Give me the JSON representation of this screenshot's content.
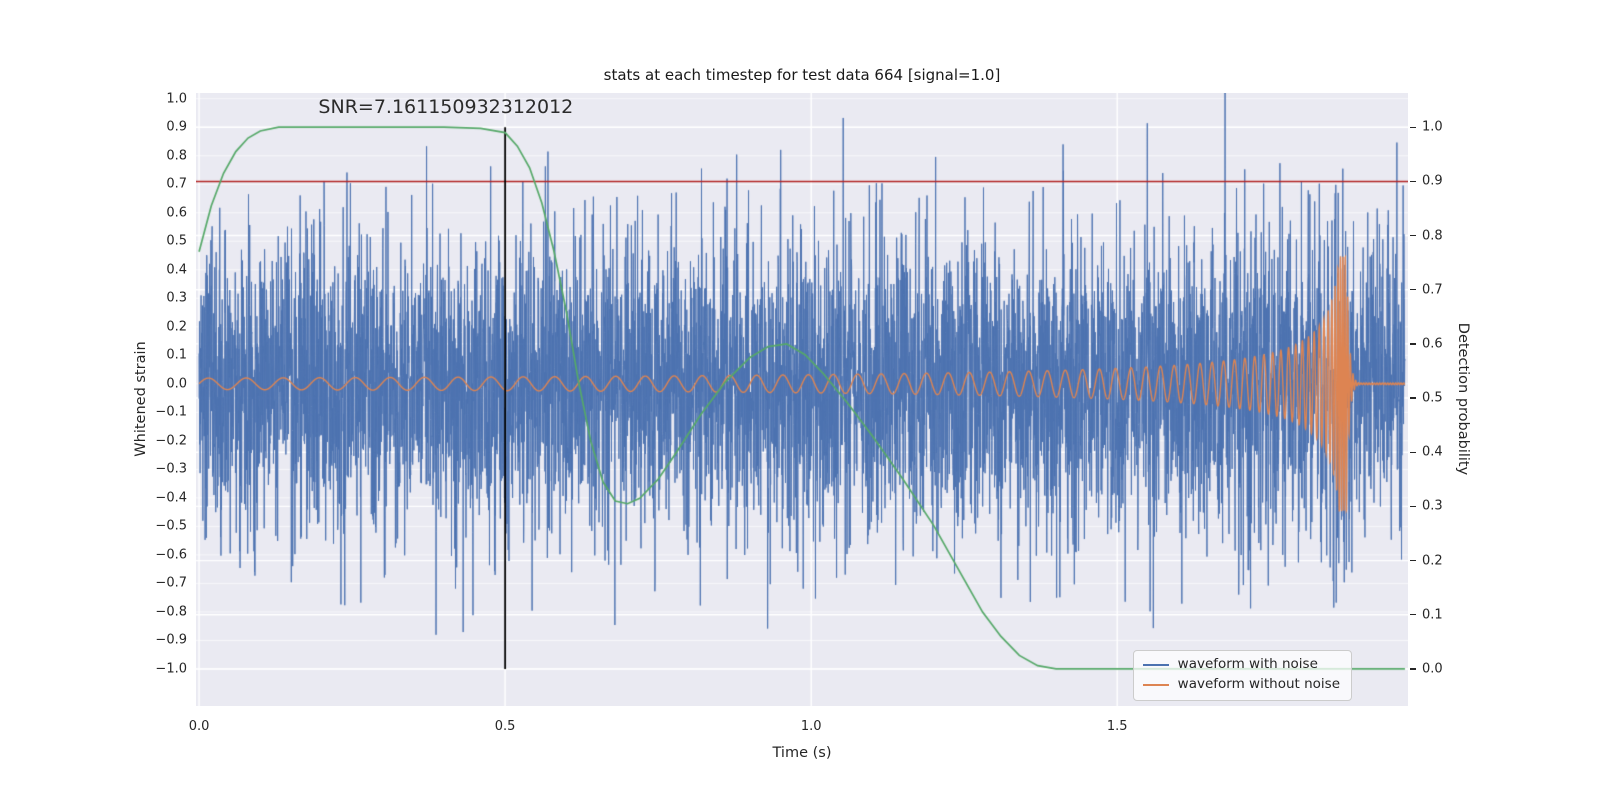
{
  "chart_data": {
    "type": "line",
    "title": "stats at each timestep for test data 664 [signal=1.0]",
    "xlabel": "Time (s)",
    "ylabel_left": "Whitened strain",
    "ylabel_right": "Detection probability",
    "xlim": [
      -0.005,
      1.975
    ],
    "ylim_left": [
      -1.13,
      1.02
    ],
    "right_axis_map": {
      "slope": 1.9,
      "intercept": -1.0
    },
    "x_ticks": [
      0.0,
      0.5,
      1.0,
      1.5
    ],
    "y_ticks_left": [
      -1.0,
      -0.9,
      -0.8,
      -0.7,
      -0.6,
      -0.5,
      -0.4,
      -0.3,
      -0.2,
      -0.1,
      0.0,
      0.1,
      0.2,
      0.3,
      0.4,
      0.5,
      0.6,
      0.7,
      0.8,
      0.9,
      1.0
    ],
    "y_ticks_right": [
      0.0,
      0.1,
      0.2,
      0.3,
      0.4,
      0.5,
      0.6,
      0.7,
      0.8,
      0.9,
      1.0
    ],
    "grid": {
      "background": "#eaeaf2",
      "color": "#ffffff"
    },
    "annotation": {
      "text": "SNR=7.161150932312012",
      "x": 0.195,
      "y_left": 0.97
    },
    "threshold_line": {
      "axis": "right",
      "y": 0.9,
      "color": "#b22222"
    },
    "event_line": {
      "x": 0.5,
      "right_y_from": 0.0,
      "right_y_to": 1.0,
      "color": "#000000"
    },
    "series": [
      {
        "name": "waveform with noise",
        "color": "#4c72b0",
        "axis": "left",
        "type": "noise_plus_signal",
        "seed": 664,
        "n": 6000,
        "noise_std": 0.26,
        "t_start": 0.0,
        "t_end": 1.97
      },
      {
        "name": "waveform without noise",
        "color": "#dd8452",
        "axis": "left",
        "type": "chirp",
        "t_start": 0.0,
        "t_end": 1.97,
        "t_coalesce": 1.875,
        "f0": 16,
        "freq_exp": -0.55,
        "amp0": 0.02,
        "amp_exp": -0.62,
        "amp_max": 0.45,
        "ringdown_tau": 0.004
      },
      {
        "name": "detection probability",
        "color": "#55a868",
        "axis": "right",
        "type": "points",
        "in_legend": false,
        "points": [
          [
            0.0,
            0.77
          ],
          [
            0.02,
            0.855
          ],
          [
            0.04,
            0.915
          ],
          [
            0.06,
            0.955
          ],
          [
            0.08,
            0.98
          ],
          [
            0.1,
            0.993
          ],
          [
            0.13,
            1.0
          ],
          [
            0.2,
            1.0
          ],
          [
            0.3,
            1.0
          ],
          [
            0.4,
            1.0
          ],
          [
            0.46,
            0.998
          ],
          [
            0.5,
            0.99
          ],
          [
            0.52,
            0.965
          ],
          [
            0.54,
            0.925
          ],
          [
            0.56,
            0.86
          ],
          [
            0.58,
            0.77
          ],
          [
            0.6,
            0.66
          ],
          [
            0.62,
            0.53
          ],
          [
            0.64,
            0.42
          ],
          [
            0.66,
            0.345
          ],
          [
            0.68,
            0.31
          ],
          [
            0.7,
            0.305
          ],
          [
            0.72,
            0.315
          ],
          [
            0.75,
            0.35
          ],
          [
            0.78,
            0.4
          ],
          [
            0.82,
            0.47
          ],
          [
            0.86,
            0.53
          ],
          [
            0.9,
            0.575
          ],
          [
            0.93,
            0.595
          ],
          [
            0.96,
            0.6
          ],
          [
            0.99,
            0.58
          ],
          [
            1.02,
            0.545
          ],
          [
            1.06,
            0.49
          ],
          [
            1.1,
            0.43
          ],
          [
            1.15,
            0.35
          ],
          [
            1.2,
            0.265
          ],
          [
            1.25,
            0.165
          ],
          [
            1.28,
            0.105
          ],
          [
            1.31,
            0.06
          ],
          [
            1.34,
            0.025
          ],
          [
            1.37,
            0.006
          ],
          [
            1.4,
            0.0
          ],
          [
            1.5,
            0.0
          ],
          [
            1.7,
            0.0
          ],
          [
            1.97,
            0.0
          ]
        ]
      }
    ],
    "legend": {
      "position": "lower right",
      "entries": [
        "waveform with noise",
        "waveform without noise"
      ]
    }
  }
}
